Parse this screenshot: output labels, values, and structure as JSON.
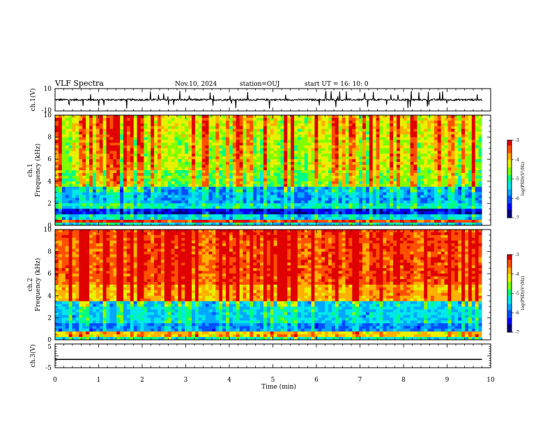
{
  "header": {
    "title": "VLF Spectra",
    "date": "Nov.10, 2024",
    "station": "station=OUJ",
    "start": "start  UT =   16: 10: 0"
  },
  "colors": {
    "spectrogram_palette": [
      "#000080",
      "#0000ff",
      "#0050ff",
      "#00a8ff",
      "#00e8e8",
      "#00ff80",
      "#80ff00",
      "#e8f000",
      "#ffb000",
      "#ff5000",
      "#e00000"
    ],
    "line": "#000000"
  },
  "chart_data": [
    {
      "id": "ch1-waveform",
      "type": "line",
      "ylabel": "ch.1(V)",
      "ylim": [
        -10,
        10
      ],
      "yticks": [
        "10",
        "-10"
      ],
      "baseline": 0,
      "description_of_values": "noisy waveform around 0 V with spikes"
    },
    {
      "id": "ch1-spectrogram",
      "type": "heatmap",
      "ylabel_top": "ch.1",
      "ylabel": "Frequency (kHz)",
      "xlim": [
        0,
        10
      ],
      "ylim": [
        0,
        10
      ],
      "yticks": [
        "0",
        "2",
        "4",
        "6",
        "8",
        "10"
      ],
      "colorbar": {
        "label": "log(PSD)(V²/Hz)",
        "range": [
          -7,
          -3
        ],
        "ticks": [
          "-3",
          "-4",
          "-5",
          "-6",
          "-7"
        ]
      },
      "bands_khz_to_level": [
        [
          0,
          0.3,
          0.35
        ],
        [
          0.3,
          0.6,
          0.85
        ],
        [
          0.6,
          1.0,
          0.35
        ],
        [
          1.0,
          1.6,
          0.1
        ],
        [
          1.6,
          2.0,
          0.4
        ],
        [
          2.0,
          3.6,
          0.3
        ],
        [
          3.6,
          5.0,
          0.55
        ],
        [
          5.0,
          8.0,
          0.62
        ],
        [
          8.0,
          10.0,
          0.66
        ]
      ]
    },
    {
      "id": "ch2-spectrogram",
      "type": "heatmap",
      "ylabel_top": "ch.2",
      "ylabel": "Frequency (kHz)",
      "xlim": [
        0,
        10
      ],
      "ylim": [
        0,
        10
      ],
      "yticks": [
        "0",
        "2",
        "4",
        "6",
        "8",
        "10"
      ],
      "colorbar": {
        "label": "log(PSD)(V²/Hz)",
        "range": [
          -7,
          -3
        ],
        "ticks": [
          "-3",
          "-4",
          "-5",
          "-6",
          "-7"
        ]
      },
      "bands_khz_to_level": [
        [
          0,
          0.3,
          0.4
        ],
        [
          0.3,
          0.8,
          0.7
        ],
        [
          0.8,
          1.6,
          0.25
        ],
        [
          1.6,
          3.6,
          0.35
        ],
        [
          3.6,
          5.0,
          0.75
        ],
        [
          5.0,
          10.0,
          0.85
        ]
      ]
    },
    {
      "id": "ch3-waveform",
      "type": "line",
      "ylabel": "ch.3(V)",
      "ylim": [
        -5,
        5
      ],
      "yticks": [
        "5",
        "0",
        "-5"
      ],
      "baseline": -1.5
    }
  ],
  "xaxis": {
    "label": "Time (min)",
    "ticks": [
      "0",
      "1",
      "2",
      "3",
      "4",
      "5",
      "6",
      "7",
      "8",
      "9",
      "10"
    ],
    "data_end": 9.8
  }
}
